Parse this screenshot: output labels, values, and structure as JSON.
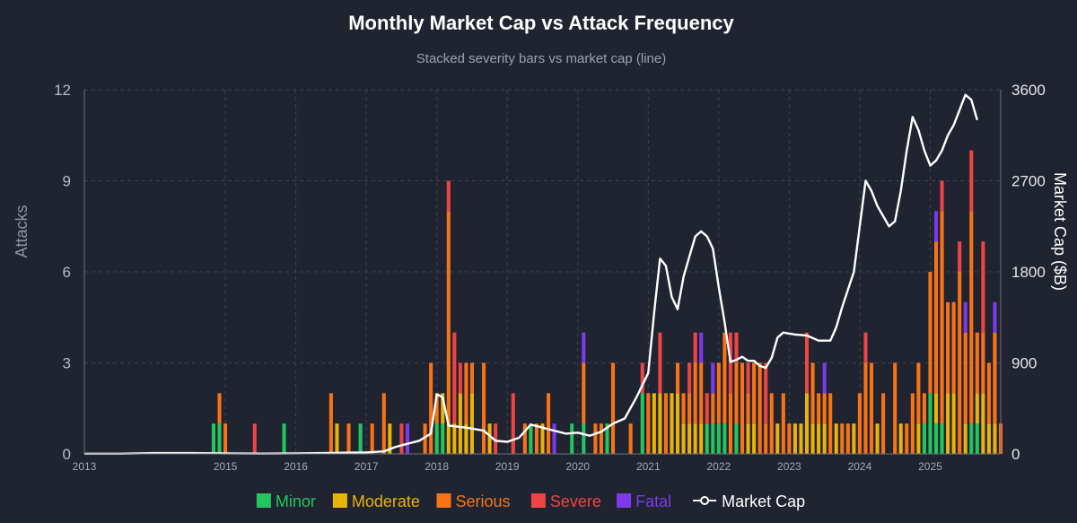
{
  "chart_data": {
    "type": "bar",
    "stacked": true,
    "title": "Monthly Market Cap vs Attack Frequency",
    "subtitle": "Stacked severity bars vs market cap (line)",
    "ylabel": "Attacks",
    "y2label": "Market Cap ($B)",
    "ylim": [
      0,
      12
    ],
    "y2lim": [
      0,
      3600
    ],
    "yticks": [
      0,
      3,
      6,
      9,
      12
    ],
    "y2ticks": [
      0,
      900,
      1800,
      2700,
      3600
    ],
    "xlim": [
      2013.0,
      2026.0
    ],
    "xticks": [
      "2013",
      "2015",
      "2016",
      "2017",
      "2018",
      "2019",
      "2020",
      "2021",
      "2022",
      "2023",
      "2024",
      "2025"
    ],
    "grid": true,
    "legend_position": "bottom",
    "categories": [
      "Minor",
      "Moderate",
      "Serious",
      "Severe",
      "Fatal"
    ],
    "colors": {
      "Minor": "#22c55e",
      "Moderate": "#eab308",
      "Serious": "#f97316",
      "Severe": "#ef4444",
      "Fatal": "#7c3aed",
      "Market Cap": "#ffffff"
    },
    "bars": [
      {
        "t": "2014-11",
        "Minor": 1
      },
      {
        "t": "2014-12",
        "Minor": 1,
        "Serious": 1
      },
      {
        "t": "2015-01",
        "Serious": 1
      },
      {
        "t": "2015-06",
        "Severe": 1
      },
      {
        "t": "2015-11",
        "Minor": 1
      },
      {
        "t": "2016-07",
        "Serious": 2
      },
      {
        "t": "2016-08",
        "Moderate": 1
      },
      {
        "t": "2016-10",
        "Serious": 1
      },
      {
        "t": "2016-12",
        "Minor": 1
      },
      {
        "t": "2017-02",
        "Serious": 1
      },
      {
        "t": "2017-04",
        "Serious": 2
      },
      {
        "t": "2017-05",
        "Moderate": 1
      },
      {
        "t": "2017-07",
        "Severe": 1
      },
      {
        "t": "2017-08",
        "Fatal": 1
      },
      {
        "t": "2017-11",
        "Serious": 1
      },
      {
        "t": "2017-12",
        "Serious": 3
      },
      {
        "t": "2018-01",
        "Minor": 1,
        "Serious": 1
      },
      {
        "t": "2018-02",
        "Minor": 1,
        "Moderate": 1
      },
      {
        "t": "2018-03",
        "Moderate": 1,
        "Serious": 7,
        "Severe": 1
      },
      {
        "t": "2018-04",
        "Moderate": 1,
        "Severe": 3
      },
      {
        "t": "2018-05",
        "Moderate": 2,
        "Severe": 1
      },
      {
        "t": "2018-06",
        "Moderate": 1,
        "Serious": 2
      },
      {
        "t": "2018-07",
        "Moderate": 2,
        "Serious": 1
      },
      {
        "t": "2018-09",
        "Serious": 3
      },
      {
        "t": "2018-10",
        "Moderate": 1
      },
      {
        "t": "2018-11",
        "Severe": 1
      },
      {
        "t": "2019-02",
        "Severe": 2
      },
      {
        "t": "2019-04",
        "Serious": 1
      },
      {
        "t": "2019-05",
        "Minor": 1
      },
      {
        "t": "2019-06",
        "Serious": 1
      },
      {
        "t": "2019-07",
        "Moderate": 1
      },
      {
        "t": "2019-08",
        "Serious": 2
      },
      {
        "t": "2019-09",
        "Fatal": 1
      },
      {
        "t": "2019-12",
        "Minor": 1
      },
      {
        "t": "2020-02",
        "Minor": 1,
        "Serious": 2,
        "Fatal": 1
      },
      {
        "t": "2020-04",
        "Serious": 1
      },
      {
        "t": "2020-05",
        "Serious": 1
      },
      {
        "t": "2020-06",
        "Minor": 1
      },
      {
        "t": "2020-07",
        "Serious": 3
      },
      {
        "t": "2020-10",
        "Serious": 1
      },
      {
        "t": "2020-12",
        "Minor": 2,
        "Severe": 1
      },
      {
        "t": "2021-01",
        "Serious": 2
      },
      {
        "t": "2021-02",
        "Moderate": 2
      },
      {
        "t": "2021-03",
        "Moderate": 2,
        "Severe": 2
      },
      {
        "t": "2021-04",
        "Serious": 2
      },
      {
        "t": "2021-05",
        "Moderate": 2
      },
      {
        "t": "2021-06",
        "Moderate": 2,
        "Serious": 1
      },
      {
        "t": "2021-07",
        "Moderate": 1,
        "Serious": 1
      },
      {
        "t": "2021-08",
        "Moderate": 1,
        "Serious": 1,
        "Severe": 1
      },
      {
        "t": "2021-09",
        "Moderate": 1,
        "Serious": 2,
        "Severe": 1
      },
      {
        "t": "2021-10",
        "Moderate": 1,
        "Serious": 2,
        "Fatal": 1
      },
      {
        "t": "2021-11",
        "Minor": 1,
        "Severe": 1
      },
      {
        "t": "2021-12",
        "Minor": 1,
        "Serious": 1,
        "Fatal": 1
      },
      {
        "t": "2022-01",
        "Minor": 1,
        "Serious": 2
      },
      {
        "t": "2022-02",
        "Minor": 1,
        "Serious": 3
      },
      {
        "t": "2022-03",
        "Serious": 2,
        "Severe": 2
      },
      {
        "t": "2022-04",
        "Minor": 1,
        "Serious": 2,
        "Severe": 1
      },
      {
        "t": "2022-05",
        "Serious": 3
      },
      {
        "t": "2022-06",
        "Moderate": 1,
        "Serious": 1,
        "Severe": 1
      },
      {
        "t": "2022-07",
        "Moderate": 1,
        "Serious": 2
      },
      {
        "t": "2022-08",
        "Serious": 3
      },
      {
        "t": "2022-09",
        "Serious": 1,
        "Severe": 2
      },
      {
        "t": "2022-10",
        "Serious": 2
      },
      {
        "t": "2022-11",
        "Moderate": 1
      },
      {
        "t": "2022-12",
        "Serious": 2
      },
      {
        "t": "2023-01",
        "Serious": 1
      },
      {
        "t": "2023-02",
        "Moderate": 1
      },
      {
        "t": "2023-03",
        "Moderate": 1
      },
      {
        "t": "2023-04",
        "Moderate": 2,
        "Severe": 2
      },
      {
        "t": "2023-05",
        "Moderate": 1,
        "Serious": 2
      },
      {
        "t": "2023-06",
        "Moderate": 1,
        "Serious": 1
      },
      {
        "t": "2023-07",
        "Moderate": 1,
        "Serious": 1,
        "Fatal": 1
      },
      {
        "t": "2023-08",
        "Serious": 2
      },
      {
        "t": "2023-09",
        "Moderate": 1
      },
      {
        "t": "2023-10",
        "Serious": 1
      },
      {
        "t": "2023-11",
        "Serious": 1
      },
      {
        "t": "2023-12",
        "Moderate": 1
      },
      {
        "t": "2024-01",
        "Serious": 2
      },
      {
        "t": "2024-02",
        "Serious": 3,
        "Severe": 1
      },
      {
        "t": "2024-03",
        "Serious": 3
      },
      {
        "t": "2024-04",
        "Moderate": 1
      },
      {
        "t": "2024-05",
        "Serious": 2
      },
      {
        "t": "2024-07",
        "Serious": 3
      },
      {
        "t": "2024-08",
        "Moderate": 1
      },
      {
        "t": "2024-09",
        "Serious": 1
      },
      {
        "t": "2024-10",
        "Serious": 2
      },
      {
        "t": "2024-11",
        "Moderate": 1,
        "Serious": 2
      },
      {
        "t": "2024-12",
        "Minor": 1,
        "Serious": 1
      },
      {
        "t": "2025-01",
        "Minor": 2,
        "Serious": 4
      },
      {
        "t": "2025-02",
        "Minor": 1,
        "Moderate": 1,
        "Serious": 5,
        "Fatal": 1
      },
      {
        "t": "2025-03",
        "Minor": 1,
        "Serious": 7,
        "Severe": 1
      },
      {
        "t": "2025-04",
        "Moderate": 2,
        "Serious": 3
      },
      {
        "t": "2025-05",
        "Moderate": 2,
        "Serious": 3
      },
      {
        "t": "2025-06",
        "Serious": 6,
        "Severe": 1
      },
      {
        "t": "2025-07",
        "Moderate": 1,
        "Serious": 3,
        "Fatal": 1
      },
      {
        "t": "2025-08",
        "Minor": 1,
        "Serious": 7,
        "Severe": 2
      },
      {
        "t": "2025-09",
        "Minor": 1,
        "Moderate": 1,
        "Serious": 2
      },
      {
        "t": "2025-10",
        "Moderate": 2,
        "Serious": 2,
        "Severe": 3
      },
      {
        "t": "2025-11",
        "Moderate": 1,
        "Serious": 2
      },
      {
        "t": "2025-12",
        "Moderate": 1,
        "Serious": 3,
        "Fatal": 1
      },
      {
        "t": "2026-01",
        "Serious": 1
      }
    ],
    "line": {
      "name": "Market Cap",
      "points": [
        [
          "2013-01",
          2
        ],
        [
          "2013-07",
          2
        ],
        [
          "2014-01",
          8
        ],
        [
          "2014-07",
          8
        ],
        [
          "2015-01",
          5
        ],
        [
          "2015-07",
          3
        ],
        [
          "2016-01",
          5
        ],
        [
          "2016-07",
          10
        ],
        [
          "2016-10",
          12
        ],
        [
          "2017-01",
          15
        ],
        [
          "2017-04",
          25
        ],
        [
          "2017-06",
          70
        ],
        [
          "2017-08",
          100
        ],
        [
          "2017-10",
          130
        ],
        [
          "2017-12",
          200
        ],
        [
          "2018-01",
          590
        ],
        [
          "2018-02",
          560
        ],
        [
          "2018-03",
          280
        ],
        [
          "2018-06",
          260
        ],
        [
          "2018-09",
          230
        ],
        [
          "2018-11",
          130
        ],
        [
          "2019-01",
          120
        ],
        [
          "2019-03",
          160
        ],
        [
          "2019-05",
          290
        ],
        [
          "2019-07",
          260
        ],
        [
          "2019-09",
          230
        ],
        [
          "2019-11",
          200
        ],
        [
          "2020-01",
          210
        ],
        [
          "2020-03",
          180
        ],
        [
          "2020-05",
          220
        ],
        [
          "2020-07",
          300
        ],
        [
          "2020-09",
          350
        ],
        [
          "2020-11",
          560
        ],
        [
          "2021-01",
          800
        ],
        [
          "2021-02",
          1400
        ],
        [
          "2021-03",
          1930
        ],
        [
          "2021-04",
          1860
        ],
        [
          "2021-05",
          1550
        ],
        [
          "2021-06",
          1430
        ],
        [
          "2021-07",
          1750
        ],
        [
          "2021-08",
          1950
        ],
        [
          "2021-09",
          2150
        ],
        [
          "2021-10",
          2200
        ],
        [
          "2021-11",
          2150
        ],
        [
          "2021-12",
          2030
        ],
        [
          "2022-01",
          1650
        ],
        [
          "2022-02",
          1300
        ],
        [
          "2022-03",
          910
        ],
        [
          "2022-04",
          930
        ],
        [
          "2022-05",
          960
        ],
        [
          "2022-06",
          920
        ],
        [
          "2022-07",
          920
        ],
        [
          "2022-08",
          870
        ],
        [
          "2022-09",
          850
        ],
        [
          "2022-10",
          950
        ],
        [
          "2022-11",
          1150
        ],
        [
          "2022-12",
          1200
        ],
        [
          "2023-02",
          1180
        ],
        [
          "2023-04",
          1170
        ],
        [
          "2023-06",
          1120
        ],
        [
          "2023-08",
          1120
        ],
        [
          "2023-09",
          1250
        ],
        [
          "2023-10",
          1450
        ],
        [
          "2023-12",
          1800
        ],
        [
          "2024-01",
          2250
        ],
        [
          "2024-02",
          2700
        ],
        [
          "2024-03",
          2600
        ],
        [
          "2024-04",
          2450
        ],
        [
          "2024-05",
          2350
        ],
        [
          "2024-06",
          2250
        ],
        [
          "2024-07",
          2300
        ],
        [
          "2024-08",
          2600
        ],
        [
          "2024-09",
          3000
        ],
        [
          "2024-10",
          3330
        ],
        [
          "2024-11",
          3200
        ],
        [
          "2024-12",
          3000
        ],
        [
          "2025-01",
          2850
        ],
        [
          "2025-02",
          2900
        ],
        [
          "2025-03",
          3000
        ],
        [
          "2025-04",
          3150
        ],
        [
          "2025-05",
          3250
        ],
        [
          "2025-06",
          3400
        ],
        [
          "2025-07",
          3550
        ],
        [
          "2025-08",
          3500
        ],
        [
          "2025-09",
          3300
        ]
      ]
    }
  }
}
